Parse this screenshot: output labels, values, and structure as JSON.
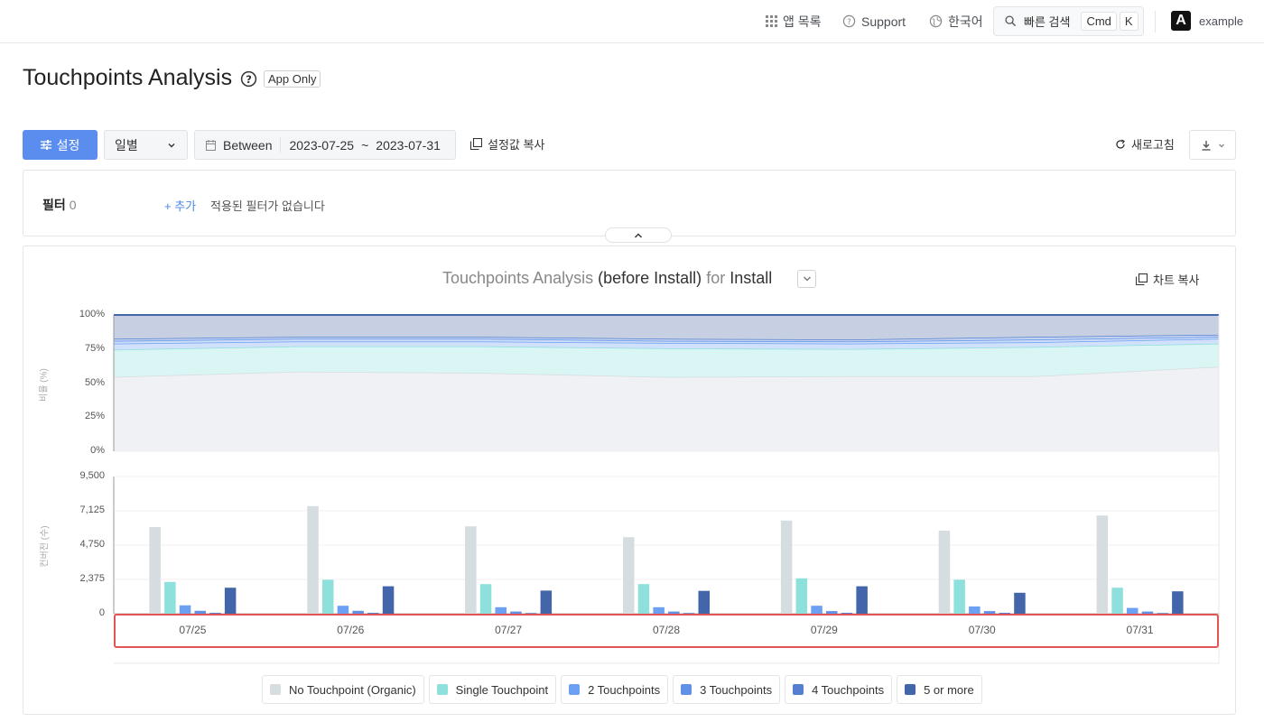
{
  "topbar": {
    "app_list": "앱 목록",
    "support": "Support",
    "language": "한국어",
    "quick_search": "빠른 검색",
    "kbd_cmd": "Cmd",
    "kbd_k": "K",
    "avatar_letter": "A",
    "account": "example"
  },
  "header": {
    "title": "Touchpoints Analysis",
    "badge": "App Only"
  },
  "toolbar": {
    "settings_label": "설정",
    "period_value": "일별",
    "range_mode": "Between",
    "start_date": "2023-07-25",
    "range_sep": "~",
    "end_date": "2023-07-31",
    "copy_settings": "설정값 복사",
    "refresh": "새로고침"
  },
  "filter": {
    "label": "필터",
    "count": "0",
    "add": "+ 추가",
    "empty": "적용된 필터가 없습니다"
  },
  "chart_panel": {
    "title_prefix": "Touchpoints Analysis",
    "title_mid": "(before Install)",
    "title_for": "for",
    "title_event": "Install",
    "copy_chart": "차트 복사"
  },
  "colors": {
    "organic": "#d5dde1",
    "single": "#8ee0dc",
    "two": "#6ba0f2",
    "three": "#5f91e6",
    "four": "#5680cf",
    "five": "#4266a9",
    "highlight": "#e25555",
    "primary": "#5b8def"
  },
  "chart_data": [
    {
      "type": "area",
      "ylabel": "비율 (%)",
      "ylim": [
        0,
        100
      ],
      "y_ticks": [
        "100%",
        "75%",
        "50%",
        "25%",
        "0%"
      ],
      "grid": true,
      "stacked": true,
      "categories": [
        "07/25",
        "07/26",
        "07/27",
        "07/28",
        "07/29",
        "07/30",
        "07/31"
      ],
      "series": [
        {
          "name": "No Touchpoint (Organic)",
          "values": [
            54.5,
            58.5,
            57.5,
            54.5,
            55.0,
            55.0,
            62.0
          ]
        },
        {
          "name": "Single Touchpoint",
          "values": [
            20.0,
            18.5,
            19.5,
            21.0,
            20.0,
            21.5,
            17.0
          ]
        },
        {
          "name": "2 Touchpoints",
          "values": [
            4.5,
            3.5,
            3.5,
            4.0,
            4.0,
            3.5,
            3.5
          ]
        },
        {
          "name": "3 Touchpoints",
          "values": [
            2.0,
            2.0,
            2.0,
            1.5,
            1.5,
            2.0,
            1.5
          ]
        },
        {
          "name": "4 Touchpoints",
          "values": [
            1.5,
            1.5,
            1.5,
            1.5,
            1.5,
            2.0,
            1.5
          ]
        },
        {
          "name": "5 or more",
          "values": [
            17.5,
            16.0,
            16.0,
            17.5,
            18.0,
            16.0,
            14.5
          ]
        }
      ]
    },
    {
      "type": "bar",
      "ylabel": "컨버전 (수)",
      "ylim": [
        0,
        9500
      ],
      "y_ticks": [
        "9,500",
        "7,125",
        "4,750",
        "2,375",
        "0"
      ],
      "grid": true,
      "legend": "bottom",
      "categories": [
        "07/25",
        "07/26",
        "07/27",
        "07/28",
        "07/29",
        "07/30",
        "07/31"
      ],
      "series": [
        {
          "name": "No Touchpoint (Organic)",
          "values": [
            6000,
            7450,
            6050,
            5300,
            6450,
            5750,
            6800
          ]
        },
        {
          "name": "Single Touchpoint",
          "values": [
            2200,
            2350,
            2050,
            2050,
            2450,
            2350,
            1800
          ]
        },
        {
          "name": "2 Touchpoints",
          "values": [
            580,
            550,
            450,
            450,
            550,
            500,
            400
          ]
        },
        {
          "name": "3 Touchpoints",
          "values": [
            200,
            200,
            150,
            150,
            180,
            180,
            150
          ]
        },
        {
          "name": "4 Touchpoints",
          "values": [
            60,
            60,
            50,
            50,
            60,
            60,
            50
          ]
        },
        {
          "name": "5 or more",
          "values": [
            1800,
            1900,
            1600,
            1580,
            1900,
            1450,
            1550
          ]
        }
      ]
    }
  ],
  "legend": [
    {
      "label": "No Touchpoint (Organic)"
    },
    {
      "label": "Single Touchpoint"
    },
    {
      "label": "2 Touchpoints"
    },
    {
      "label": "3 Touchpoints"
    },
    {
      "label": "4 Touchpoints"
    },
    {
      "label": "5 or more"
    }
  ]
}
